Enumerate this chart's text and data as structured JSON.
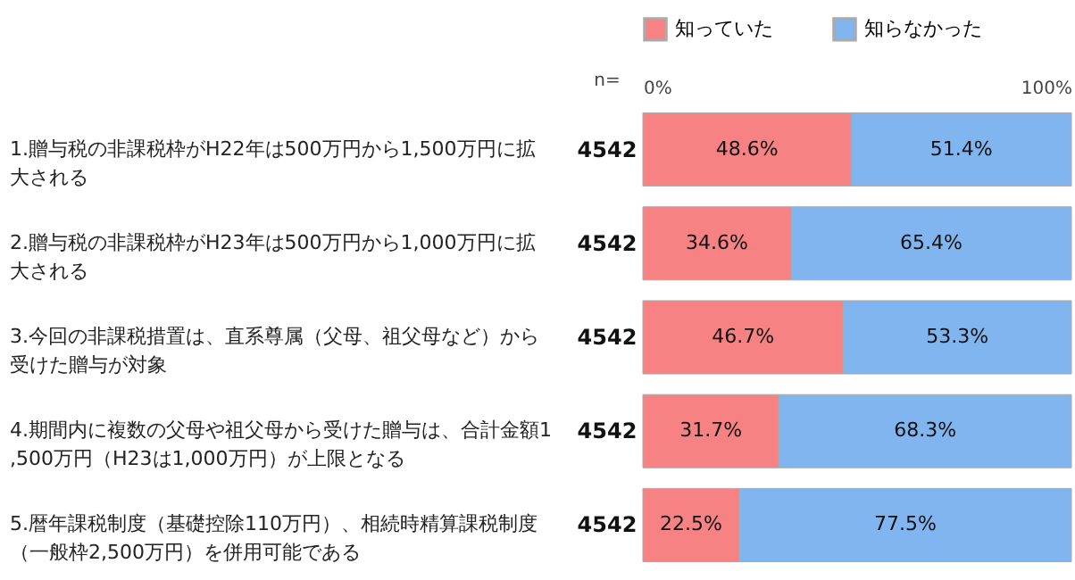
{
  "chart_data": {
    "type": "bar",
    "orientation": "horizontal",
    "stacked": true,
    "legend": "top",
    "grid": false,
    "categories": [
      "1.贈与税の非課税枠がH22年は500万円から1,500万円に拡大される",
      "2.贈与税の非課税枠がH23年は500万円から1,000万円に拡大される",
      "3.今回の非課税措置は、直系尊属（父母、祖父母など）から受けた贈与が対象",
      "4.期間内に複数の父母や祖父母から受けた贈与は、合計金額1,500万円（H23は1,000万円）が上限となる",
      "5.暦年課税制度（基礎控除110万円）、相続時精算課税制度（一般枠2,500万円）を併用可能である"
    ],
    "series": [
      {
        "name": "知っていた",
        "color": "#f78283",
        "values": [
          48.6,
          34.6,
          46.7,
          31.7,
          22.5
        ],
        "value_labels": [
          "48.6%",
          "34.6%",
          "46.7%",
          "31.7%",
          "22.5%"
        ]
      },
      {
        "name": "知らなかった",
        "color": "#80b5ef",
        "values": [
          51.4,
          65.4,
          53.3,
          68.3,
          77.5
        ],
        "value_labels": [
          "51.4%",
          "65.4%",
          "53.3%",
          "68.3%",
          "77.5%"
        ]
      }
    ],
    "xlim": [
      0,
      100
    ],
    "xticks": [
      {
        "value": 0,
        "label": "0%"
      },
      {
        "value": 100,
        "label": "100%"
      }
    ],
    "annotations": [
      "n=",
      "4542",
      "4542",
      "4542",
      "4542",
      "4542"
    ]
  }
}
